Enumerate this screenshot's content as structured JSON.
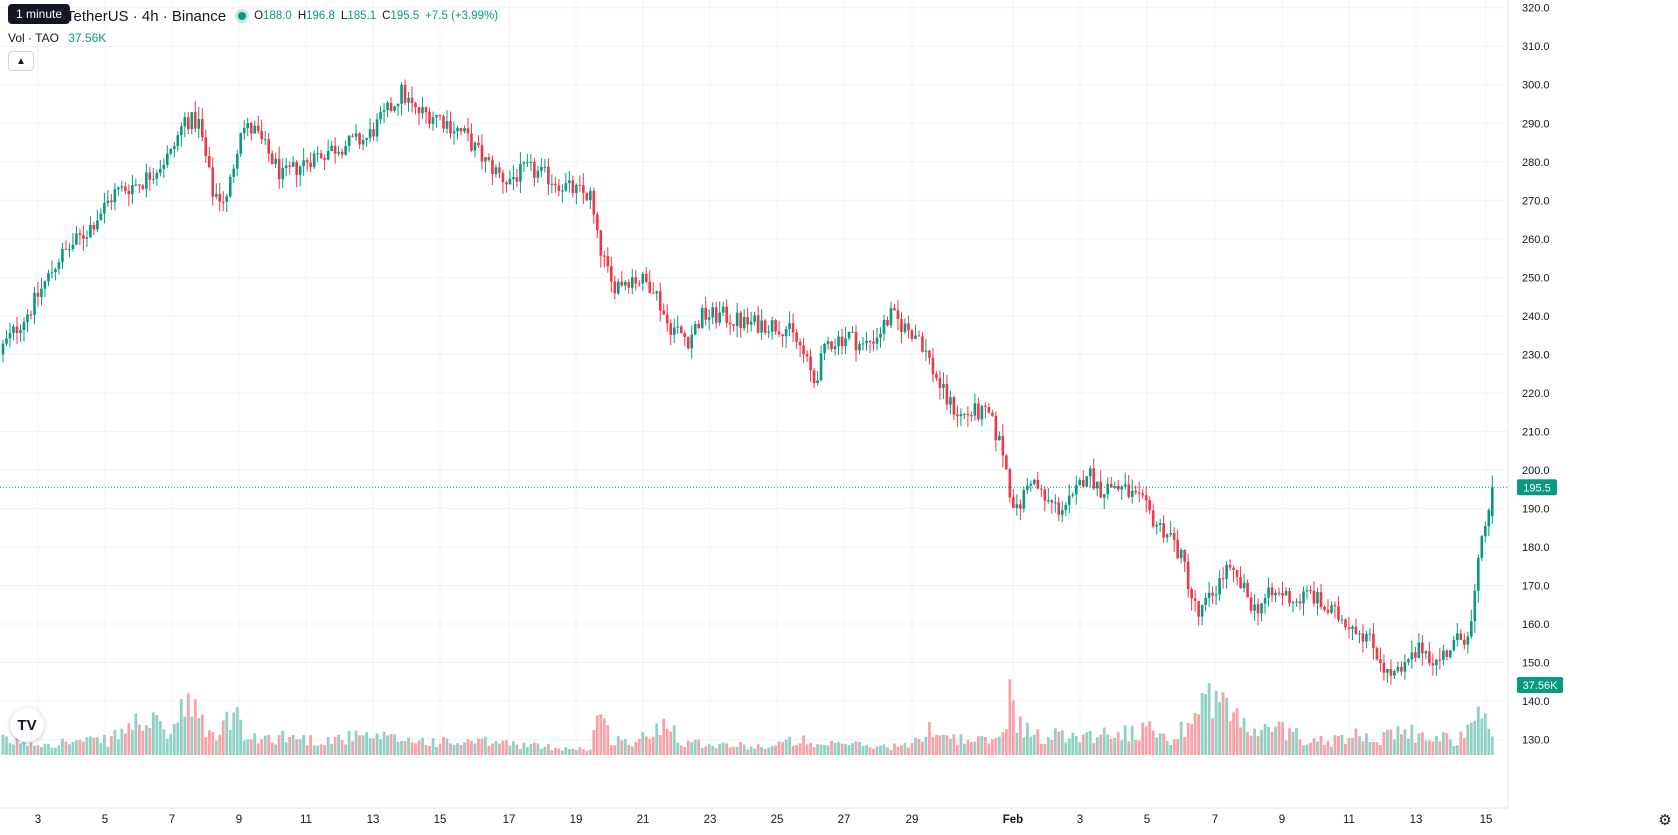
{
  "header": {
    "tooltip": "1 minute",
    "symbol": "TetherUS · 4h · Binance",
    "open_label": "O",
    "open": "188.0",
    "high_label": "H",
    "high": "196.8",
    "low_label": "L",
    "low": "185.1",
    "close_label": "C",
    "close": "195.5",
    "change": "+7.5 (+3.99%)"
  },
  "volume_indicator": {
    "label": "Vol · TAO",
    "value": "37.56K"
  },
  "icons": {
    "collapse": "chevron-up-icon",
    "logo": "tradingview-logo",
    "settings": "gear-icon"
  },
  "colors": {
    "up": "#089981",
    "down": "#f23645",
    "up_vol": "#8fd1c5",
    "down_vol": "#f7a1a8",
    "grid": "#f0f3fa"
  },
  "chart_data": {
    "type": "candlestick",
    "price_axis": {
      "range": [
        126,
        322
      ],
      "ticks": [
        "320.0",
        "310.0",
        "300.0",
        "290.0",
        "280.0",
        "270.0",
        "260.0",
        "250.0",
        "240.0",
        "230.0",
        "220.0",
        "210.0",
        "200.0",
        "190.0",
        "180.0",
        "170.0",
        "160.0",
        "150.0",
        "140.0",
        "130.0"
      ]
    },
    "time_axis": {
      "labels": [
        "3",
        "5",
        "7",
        "9",
        "11",
        "13",
        "15",
        "17",
        "19",
        "21",
        "23",
        "25",
        "27",
        "29",
        "Feb",
        "3",
        "5",
        "7",
        "9",
        "11",
        "13",
        "15"
      ]
    },
    "last_price": "195.5",
    "last_volume": "37.56K",
    "grid": true,
    "price_path": [
      [
        0,
        232
      ],
      [
        8,
        242
      ],
      [
        16,
        255
      ],
      [
        24,
        262
      ],
      [
        32,
        272
      ],
      [
        40,
        275
      ],
      [
        48,
        282
      ],
      [
        52,
        291
      ],
      [
        56,
        290
      ],
      [
        60,
        272
      ],
      [
        64,
        270
      ],
      [
        68,
        289
      ],
      [
        72,
        288
      ],
      [
        80,
        276
      ],
      [
        88,
        281
      ],
      [
        96,
        284
      ],
      [
        104,
        286
      ],
      [
        110,
        293
      ],
      [
        114,
        298
      ],
      [
        118,
        293
      ],
      [
        124,
        292
      ],
      [
        132,
        287
      ],
      [
        138,
        280
      ],
      [
        144,
        275
      ],
      [
        150,
        278
      ],
      [
        156,
        276
      ],
      [
        162,
        273
      ],
      [
        168,
        271
      ],
      [
        170,
        260
      ],
      [
        174,
        248
      ],
      [
        180,
        250
      ],
      [
        186,
        248
      ],
      [
        190,
        238
      ],
      [
        196,
        234
      ],
      [
        200,
        240
      ],
      [
        206,
        240
      ],
      [
        212,
        238
      ],
      [
        218,
        238
      ],
      [
        224,
        237
      ],
      [
        228,
        232
      ],
      [
        232,
        223
      ],
      [
        236,
        233
      ],
      [
        242,
        235
      ],
      [
        246,
        232
      ],
      [
        250,
        235
      ],
      [
        254,
        240
      ],
      [
        258,
        237
      ],
      [
        262,
        235
      ],
      [
        266,
        226
      ],
      [
        270,
        218
      ],
      [
        274,
        214
      ],
      [
        278,
        215
      ],
      [
        282,
        214
      ],
      [
        286,
        205
      ],
      [
        288,
        195
      ],
      [
        290,
        189
      ],
      [
        294,
        198
      ],
      [
        298,
        192
      ],
      [
        302,
        190
      ],
      [
        306,
        192
      ],
      [
        310,
        200
      ],
      [
        314,
        195
      ],
      [
        318,
        196
      ],
      [
        322,
        194
      ],
      [
        326,
        191
      ],
      [
        330,
        186
      ],
      [
        334,
        183
      ],
      [
        338,
        175
      ],
      [
        340,
        167
      ],
      [
        342,
        162
      ],
      [
        346,
        168
      ],
      [
        350,
        174
      ],
      [
        354,
        170
      ],
      [
        358,
        164
      ],
      [
        362,
        167
      ],
      [
        366,
        168
      ],
      [
        370,
        166
      ],
      [
        374,
        168
      ],
      [
        378,
        164
      ],
      [
        382,
        162
      ],
      [
        386,
        160
      ],
      [
        390,
        157
      ],
      [
        394,
        151
      ],
      [
        396,
        147
      ],
      [
        400,
        147
      ],
      [
        402,
        150
      ],
      [
        406,
        154
      ],
      [
        410,
        150
      ],
      [
        414,
        154
      ],
      [
        418,
        157
      ],
      [
        420,
        160
      ],
      [
        422,
        175
      ],
      [
        424,
        186
      ],
      [
        426,
        195.5
      ]
    ],
    "volume_path": [
      [
        0,
        0.12
      ],
      [
        10,
        0.1
      ],
      [
        30,
        0.12
      ],
      [
        40,
        0.3
      ],
      [
        48,
        0.18
      ],
      [
        52,
        0.4
      ],
      [
        56,
        0.32
      ],
      [
        60,
        0.14
      ],
      [
        66,
        0.36
      ],
      [
        70,
        0.12
      ],
      [
        80,
        0.16
      ],
      [
        90,
        0.12
      ],
      [
        100,
        0.15
      ],
      [
        110,
        0.14
      ],
      [
        120,
        0.12
      ],
      [
        130,
        0.1
      ],
      [
        140,
        0.11
      ],
      [
        150,
        0.08
      ],
      [
        160,
        0.06
      ],
      [
        168,
        0.05
      ],
      [
        170,
        0.34
      ],
      [
        174,
        0.14
      ],
      [
        180,
        0.1
      ],
      [
        186,
        0.18
      ],
      [
        190,
        0.32
      ],
      [
        194,
        0.12
      ],
      [
        200,
        0.1
      ],
      [
        210,
        0.08
      ],
      [
        220,
        0.07
      ],
      [
        228,
        0.14
      ],
      [
        232,
        0.06
      ],
      [
        240,
        0.1
      ],
      [
        250,
        0.07
      ],
      [
        260,
        0.08
      ],
      [
        266,
        0.24
      ],
      [
        270,
        0.16
      ],
      [
        276,
        0.12
      ],
      [
        282,
        0.12
      ],
      [
        286,
        0.16
      ],
      [
        288,
        0.52
      ],
      [
        290,
        0.32
      ],
      [
        294,
        0.16
      ],
      [
        300,
        0.16
      ],
      [
        306,
        0.18
      ],
      [
        310,
        0.16
      ],
      [
        316,
        0.18
      ],
      [
        320,
        0.2
      ],
      [
        324,
        0.18
      ],
      [
        330,
        0.22
      ],
      [
        334,
        0.12
      ],
      [
        338,
        0.24
      ],
      [
        340,
        0.36
      ],
      [
        342,
        0.44
      ],
      [
        346,
        0.52
      ],
      [
        350,
        0.4
      ],
      [
        354,
        0.28
      ],
      [
        358,
        0.18
      ],
      [
        362,
        0.2
      ],
      [
        366,
        0.22
      ],
      [
        372,
        0.14
      ],
      [
        380,
        0.12
      ],
      [
        386,
        0.16
      ],
      [
        390,
        0.2
      ],
      [
        394,
        0.14
      ],
      [
        398,
        0.16
      ],
      [
        402,
        0.2
      ],
      [
        406,
        0.14
      ],
      [
        410,
        0.18
      ],
      [
        414,
        0.12
      ],
      [
        418,
        0.16
      ],
      [
        420,
        0.24
      ],
      [
        422,
        0.32
      ],
      [
        424,
        0.3
      ],
      [
        426,
        0.22
      ]
    ]
  }
}
